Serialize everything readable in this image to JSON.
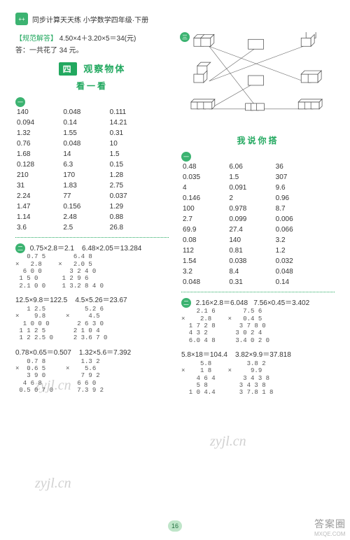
{
  "header": {
    "logo_text": "++",
    "title": "同步计算天天练  小学数学四年级·下册"
  },
  "solution": {
    "label": "【规范解答】",
    "expr": "4.50×4＋3.20×5＝34(元)",
    "answer_prefix": "答：一共花了",
    "answer_value": "34 元。"
  },
  "section": {
    "num": "四",
    "title": "观察物体",
    "sub": "看一看"
  },
  "table1": {
    "rows": [
      [
        "140",
        "0.048",
        "0.111"
      ],
      [
        "0.094",
        "0.14",
        "14.21"
      ],
      [
        "1.32",
        "1.55",
        "0.31"
      ],
      [
        "0.76",
        "0.048",
        "10"
      ],
      [
        "1.68",
        "14",
        "1.5"
      ],
      [
        "0.128",
        "6.3",
        "0.15"
      ],
      [
        "210",
        "170",
        "1.28"
      ],
      [
        "31",
        "1.83",
        "2.75"
      ],
      [
        "2.24",
        "77",
        "0.037"
      ],
      [
        "1.47",
        "0.156",
        "1.29"
      ],
      [
        "1.14",
        "2.48",
        "0.88"
      ],
      [
        "3.6",
        "2.5",
        "26.8"
      ]
    ]
  },
  "eq_group_a": {
    "line1_left": "0.75×2.8＝2.1",
    "line1_right": "6.48×2.05＝13.284",
    "line2_left": "12.5×9.8＝122.5",
    "line2_right": "4.5×5.26＝23.67",
    "line3_left": "0.78×0.65＝0.507",
    "line3_right": "1.32×5.6＝7.392"
  },
  "vmul_a": {
    "m1": "   0.7 5\n×   2.8\n  6 0 0\n 1 5 0\n 2.1 0 0",
    "m2": "    6.4 8\n×   2.0 5\n   3 2 4 0\n 1 2 9 6\n 1 3.2 8 4 0",
    "m3": "   1 2.5\n×    9.8\n  1 0 0 0\n 1 1 2 5\n 1 2 2.5 0",
    "m4": "     5.2 6\n×     4.5\n   2 6 3 0\n  2 1 0 4\n  2 3.6 7 0",
    "m5": "   0.7 8\n×  0.6 5\n   3 9 0\n  4 6 8\n 0.5 0 7 0",
    "m6": "    1.3 2\n×    5.6\n    7 9 2\n   6 6 0\n   7.3 9 2"
  },
  "right_section": {
    "title": "我说你搭"
  },
  "table2": {
    "rows": [
      [
        "0.48",
        "6.06",
        "36"
      ],
      [
        "0.035",
        "1.5",
        "307"
      ],
      [
        "4",
        "0.091",
        "9.6"
      ],
      [
        "0.146",
        "2",
        "0.96"
      ],
      [
        "100",
        "0.978",
        "8.7"
      ],
      [
        "2.7",
        "0.099",
        "0.006"
      ],
      [
        "69.9",
        "27.4",
        "0.066"
      ],
      [
        "0.08",
        "140",
        "3.2"
      ],
      [
        "112",
        "0.81",
        "1.2"
      ],
      [
        "1.54",
        "0.038",
        "0.032"
      ],
      [
        "3.2",
        "8.4",
        "0.048"
      ],
      [
        "0.048",
        "0.31",
        "0.14"
      ]
    ]
  },
  "eq_group_b": {
    "line1_left": "2.16×2.8＝6.048",
    "line1_right": "7.56×0.45＝3.402",
    "line2_left": "5.8×18＝104.4",
    "line2_right": "3.82×9.9＝37.818"
  },
  "vmul_b": {
    "m1": "    2.1 6\n×    2.8\n  1 7 2 8\n  4 3 2\n  6.0 4 8",
    "m2": "    7.5 6\n×   0.4 5\n   3 7 8 0\n  3 0 2 4\n  3.4 0 2 0",
    "m3": "     5.8\n×    1 8\n    4 6 4\n    5 8\n  1 0 4.4",
    "m4": "     3.8 2\n×     9.9\n    3 4 3 8\n   3 4 3 8\n   3 7.8 1 8"
  },
  "page_number": "16",
  "watermarks": {
    "w1": "zyjl.cn",
    "w2": "zyjl.cn",
    "w3": "zyjl.cn"
  },
  "footer": {
    "cn": "答案圈",
    "en": "MXQE.COM"
  },
  "colors": {
    "green": "#22a85f",
    "bullet_bg": "#3cb371",
    "text": "#333333",
    "pagenum_bg": "#bfe5c9"
  }
}
